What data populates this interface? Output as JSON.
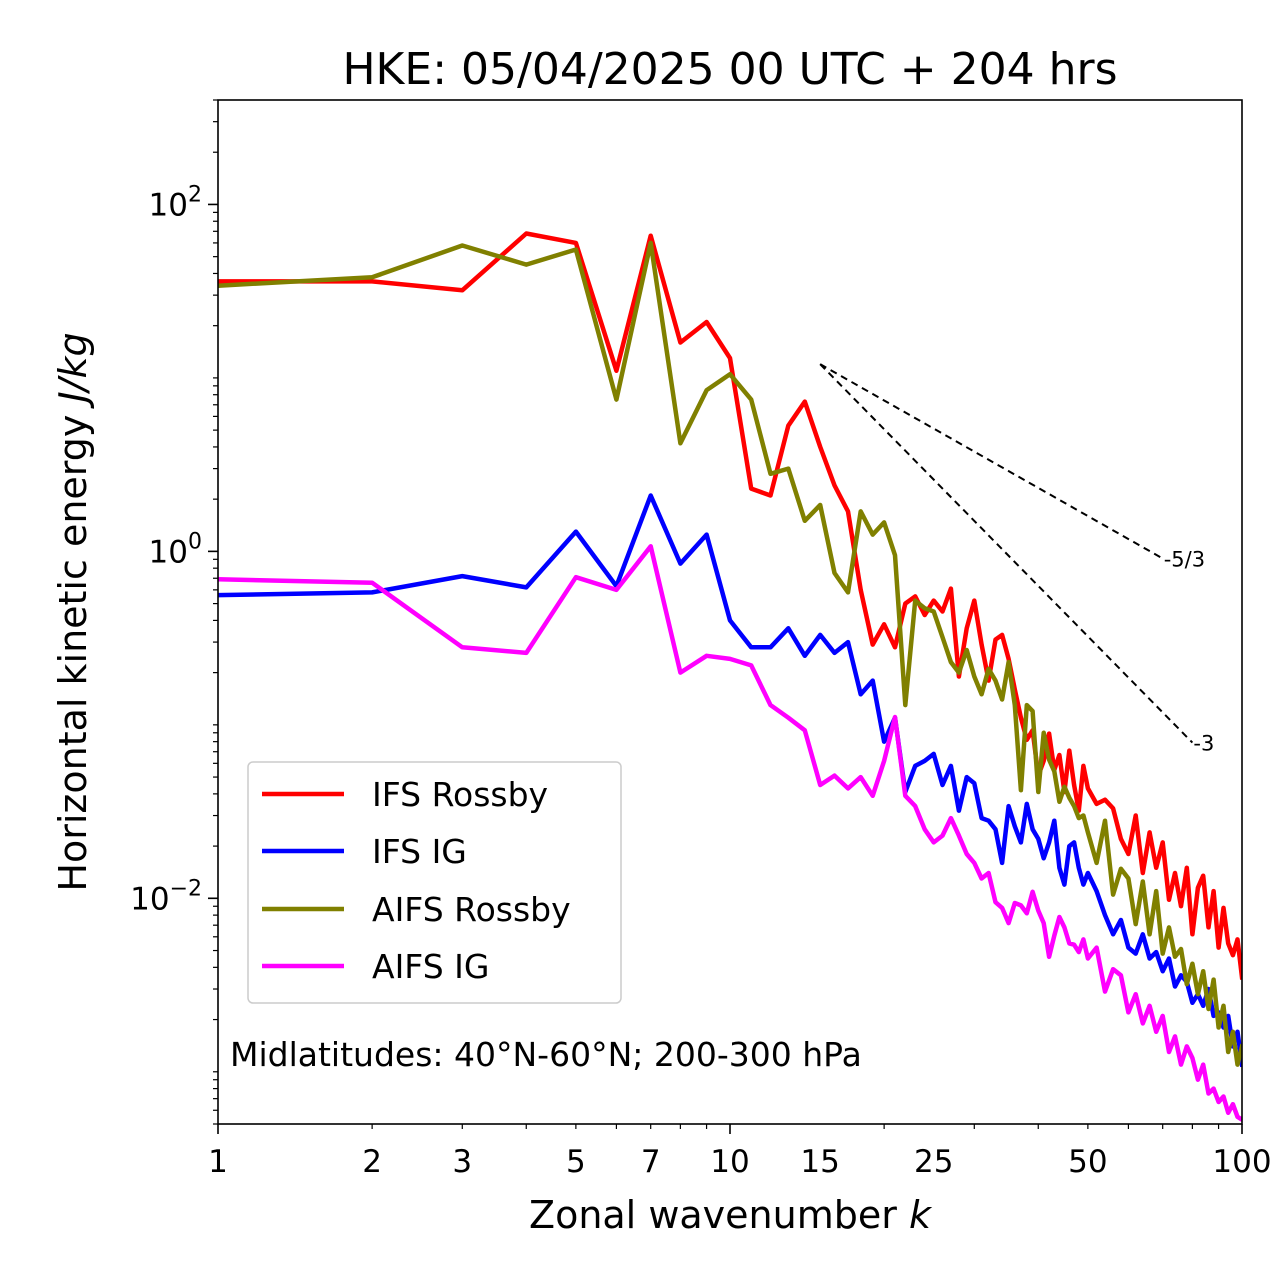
{
  "chart_data": {
    "type": "line",
    "title": "HKE: 05/04/2025 00 UTC + 204 hrs",
    "xlabel": "Zonal wavenumber",
    "xlabel_var": "k",
    "ylabel": "Horizontal kinetic energy",
    "ylabel_units": "J/kg",
    "xscale": "log",
    "yscale": "log",
    "xlim": [
      1,
      100
    ],
    "ylim": [
      0.0005,
      400
    ],
    "x_ticks": [
      1,
      2,
      3,
      5,
      7,
      10,
      15,
      25,
      50,
      100
    ],
    "x_tick_labels": [
      "1",
      "2",
      "3",
      "5",
      "7",
      "10",
      "15",
      "25",
      "50",
      "100"
    ],
    "y_ticks": [
      0.01,
      1,
      100
    ],
    "y_tick_labels": [
      {
        "base": "10",
        "exp": "−2"
      },
      {
        "base": "10",
        "exp": "0"
      },
      {
        "base": "10",
        "exp": "2"
      }
    ],
    "grid": false,
    "legend_position": "lower-left",
    "annotation": "Midlatitudes: 40°N-60°N; 200-300 hPa",
    "reference_lines": [
      {
        "label": "-5/3",
        "slope": -1.6667,
        "x": [
          15,
          70
        ],
        "y": [
          12.0,
          0.91
        ]
      },
      {
        "label": "-3",
        "slope": -3,
        "x": [
          15,
          80
        ],
        "y": [
          12.0,
          0.079
        ]
      }
    ],
    "series": [
      {
        "name": "IFS Rossby",
        "color": "#ff0000",
        "points": [
          [
            1,
            36
          ],
          [
            2,
            36
          ],
          [
            3,
            32
          ],
          [
            4,
            68
          ],
          [
            5,
            60
          ],
          [
            6,
            11
          ],
          [
            7,
            66
          ],
          [
            8,
            16
          ],
          [
            9,
            21
          ],
          [
            10,
            13
          ],
          [
            11,
            2.3
          ],
          [
            12,
            2.1
          ],
          [
            13,
            5.3
          ],
          [
            14,
            7.3
          ],
          [
            15,
            4.0
          ],
          [
            16,
            2.4
          ],
          [
            17,
            1.7
          ],
          [
            18,
            0.6
          ],
          [
            19,
            0.29
          ],
          [
            20,
            0.38
          ],
          [
            21,
            0.28
          ],
          [
            22,
            0.5
          ],
          [
            23,
            0.55
          ],
          [
            24,
            0.43
          ],
          [
            25,
            0.52
          ],
          [
            26,
            0.45
          ],
          [
            27,
            0.61
          ],
          [
            28,
            0.19
          ],
          [
            29,
            0.36
          ],
          [
            30,
            0.52
          ],
          [
            31,
            0.29
          ],
          [
            32,
            0.18
          ],
          [
            33,
            0.31
          ],
          [
            34,
            0.33
          ],
          [
            35,
            0.24
          ],
          [
            36,
            0.16
          ],
          [
            37,
            0.11
          ],
          [
            38,
            0.082
          ],
          [
            39,
            0.093
          ],
          [
            40,
            0.051
          ],
          [
            41,
            0.062
          ],
          [
            42,
            0.089
          ],
          [
            43,
            0.055
          ],
          [
            44,
            0.067
          ],
          [
            45,
            0.041
          ],
          [
            46,
            0.071
          ],
          [
            47,
            0.045
          ],
          [
            48,
            0.032
          ],
          [
            49,
            0.058
          ],
          [
            50,
            0.043
          ],
          [
            52,
            0.035
          ],
          [
            54,
            0.037
          ],
          [
            56,
            0.033
          ],
          [
            58,
            0.022
          ],
          [
            60,
            0.018
          ],
          [
            62,
            0.03
          ],
          [
            64,
            0.014
          ],
          [
            66,
            0.024
          ],
          [
            68,
            0.015
          ],
          [
            70,
            0.021
          ],
          [
            72,
            0.0098
          ],
          [
            74,
            0.014
          ],
          [
            76,
            0.009
          ],
          [
            78,
            0.015
          ],
          [
            80,
            0.0062
          ],
          [
            82,
            0.0115
          ],
          [
            84,
            0.0135
          ],
          [
            86,
            0.0068
          ],
          [
            88,
            0.011
          ],
          [
            90,
            0.0052
          ],
          [
            92,
            0.0088
          ],
          [
            94,
            0.0055
          ],
          [
            96,
            0.0047
          ],
          [
            98,
            0.0058
          ],
          [
            100,
            0.0035
          ]
        ]
      },
      {
        "name": "IFS IG",
        "color": "#0000ff",
        "points": [
          [
            1,
            0.56
          ],
          [
            2,
            0.58
          ],
          [
            3,
            0.72
          ],
          [
            4,
            0.62
          ],
          [
            5,
            1.3
          ],
          [
            6,
            0.63
          ],
          [
            7,
            2.1
          ],
          [
            8,
            0.85
          ],
          [
            9,
            1.25
          ],
          [
            10,
            0.4
          ],
          [
            11,
            0.28
          ],
          [
            12,
            0.28
          ],
          [
            13,
            0.36
          ],
          [
            14,
            0.25
          ],
          [
            15,
            0.33
          ],
          [
            16,
            0.26
          ],
          [
            17,
            0.3
          ],
          [
            18,
            0.15
          ],
          [
            19,
            0.18
          ],
          [
            20,
            0.08
          ],
          [
            21,
            0.11
          ],
          [
            22,
            0.041
          ],
          [
            23,
            0.058
          ],
          [
            24,
            0.062
          ],
          [
            25,
            0.068
          ],
          [
            26,
            0.045
          ],
          [
            27,
            0.058
          ],
          [
            28,
            0.032
          ],
          [
            29,
            0.05
          ],
          [
            30,
            0.046
          ],
          [
            31,
            0.029
          ],
          [
            32,
            0.028
          ],
          [
            33,
            0.025
          ],
          [
            34,
            0.016
          ],
          [
            35,
            0.034
          ],
          [
            36,
            0.026
          ],
          [
            37,
            0.021
          ],
          [
            38,
            0.035
          ],
          [
            39,
            0.025
          ],
          [
            40,
            0.022
          ],
          [
            41,
            0.017
          ],
          [
            42,
            0.021
          ],
          [
            43,
            0.028
          ],
          [
            44,
            0.015
          ],
          [
            45,
            0.012
          ],
          [
            46,
            0.02
          ],
          [
            47,
            0.021
          ],
          [
            48,
            0.015
          ],
          [
            49,
            0.012
          ],
          [
            50,
            0.014
          ],
          [
            52,
            0.011
          ],
          [
            54,
            0.008
          ],
          [
            56,
            0.0062
          ],
          [
            58,
            0.0075
          ],
          [
            60,
            0.0052
          ],
          [
            62,
            0.0048
          ],
          [
            64,
            0.0062
          ],
          [
            66,
            0.0045
          ],
          [
            68,
            0.0049
          ],
          [
            70,
            0.0038
          ],
          [
            72,
            0.0045
          ],
          [
            74,
            0.0031
          ],
          [
            76,
            0.0036
          ],
          [
            78,
            0.0033
          ],
          [
            80,
            0.0025
          ],
          [
            82,
            0.0028
          ],
          [
            84,
            0.0024
          ],
          [
            86,
            0.003
          ],
          [
            88,
            0.0021
          ],
          [
            90,
            0.0022
          ],
          [
            92,
            0.0018
          ],
          [
            94,
            0.0021
          ],
          [
            96,
            0.0014
          ],
          [
            98,
            0.0017
          ],
          [
            100,
            0.0011
          ]
        ]
      },
      {
        "name": "AIFS Rossby",
        "color": "#808000",
        "points": [
          [
            1,
            34
          ],
          [
            2,
            38
          ],
          [
            3,
            58
          ],
          [
            4,
            45
          ],
          [
            5,
            55
          ],
          [
            6,
            7.5
          ],
          [
            7,
            60
          ],
          [
            8,
            4.2
          ],
          [
            9,
            8.5
          ],
          [
            10,
            10.5
          ],
          [
            11,
            7.5
          ],
          [
            12,
            2.8
          ],
          [
            13,
            3.0
          ],
          [
            14,
            1.5
          ],
          [
            15,
            1.85
          ],
          [
            16,
            0.75
          ],
          [
            17,
            0.58
          ],
          [
            18,
            1.7
          ],
          [
            19,
            1.25
          ],
          [
            20,
            1.47
          ],
          [
            21,
            0.95
          ],
          [
            22,
            0.13
          ],
          [
            23,
            0.52
          ],
          [
            24,
            0.47
          ],
          [
            25,
            0.45
          ],
          [
            26,
            0.32
          ],
          [
            27,
            0.23
          ],
          [
            28,
            0.2
          ],
          [
            29,
            0.27
          ],
          [
            30,
            0.19
          ],
          [
            31,
            0.15
          ],
          [
            32,
            0.21
          ],
          [
            33,
            0.18
          ],
          [
            34,
            0.14
          ],
          [
            35,
            0.23
          ],
          [
            36,
            0.13
          ],
          [
            37,
            0.042
          ],
          [
            38,
            0.13
          ],
          [
            39,
            0.12
          ],
          [
            40,
            0.041
          ],
          [
            41,
            0.09
          ],
          [
            42,
            0.063
          ],
          [
            43,
            0.054
          ],
          [
            44,
            0.036
          ],
          [
            45,
            0.044
          ],
          [
            46,
            0.038
          ],
          [
            47,
            0.034
          ],
          [
            48,
            0.029
          ],
          [
            49,
            0.03
          ],
          [
            50,
            0.024
          ],
          [
            52,
            0.016
          ],
          [
            54,
            0.028
          ],
          [
            56,
            0.0105
          ],
          [
            58,
            0.0148
          ],
          [
            60,
            0.013
          ],
          [
            62,
            0.0071
          ],
          [
            64,
            0.0125
          ],
          [
            66,
            0.0062
          ],
          [
            68,
            0.011
          ],
          [
            70,
            0.0048
          ],
          [
            72,
            0.0068
          ],
          [
            74,
            0.0046
          ],
          [
            76,
            0.0051
          ],
          [
            78,
            0.0032
          ],
          [
            80,
            0.0042
          ],
          [
            82,
            0.0028
          ],
          [
            84,
            0.0038
          ],
          [
            86,
            0.0023
          ],
          [
            88,
            0.0034
          ],
          [
            90,
            0.0018
          ],
          [
            92,
            0.0024
          ],
          [
            94,
            0.0013
          ],
          [
            96,
            0.0017
          ],
          [
            98,
            0.0011
          ],
          [
            100,
            0.0014
          ]
        ]
      },
      {
        "name": "AIFS IG",
        "color": "#ff00ff",
        "points": [
          [
            1,
            0.69
          ],
          [
            2,
            0.66
          ],
          [
            3,
            0.28
          ],
          [
            4,
            0.26
          ],
          [
            5,
            0.71
          ],
          [
            6,
            0.6
          ],
          [
            7,
            1.07
          ],
          [
            8,
            0.2
          ],
          [
            9,
            0.25
          ],
          [
            10,
            0.24
          ],
          [
            11,
            0.22
          ],
          [
            12,
            0.13
          ],
          [
            13,
            0.11
          ],
          [
            14,
            0.093
          ],
          [
            15,
            0.045
          ],
          [
            16,
            0.051
          ],
          [
            17,
            0.043
          ],
          [
            18,
            0.05
          ],
          [
            19,
            0.039
          ],
          [
            20,
            0.062
          ],
          [
            21,
            0.111
          ],
          [
            22,
            0.039
          ],
          [
            23,
            0.034
          ],
          [
            24,
            0.025
          ],
          [
            25,
            0.021
          ],
          [
            26,
            0.023
          ],
          [
            27,
            0.029
          ],
          [
            28,
            0.023
          ],
          [
            29,
            0.018
          ],
          [
            30,
            0.016
          ],
          [
            31,
            0.013
          ],
          [
            32,
            0.014
          ],
          [
            33,
            0.0095
          ],
          [
            34,
            0.0088
          ],
          [
            35,
            0.0072
          ],
          [
            36,
            0.0094
          ],
          [
            37,
            0.0091
          ],
          [
            38,
            0.0082
          ],
          [
            39,
            0.0109
          ],
          [
            40,
            0.0085
          ],
          [
            41,
            0.0072
          ],
          [
            42,
            0.0046
          ],
          [
            43,
            0.0061
          ],
          [
            44,
            0.0078
          ],
          [
            45,
            0.0068
          ],
          [
            46,
            0.0055
          ],
          [
            47,
            0.0054
          ],
          [
            48,
            0.0049
          ],
          [
            49,
            0.0058
          ],
          [
            50,
            0.0045
          ],
          [
            52,
            0.0052
          ],
          [
            54,
            0.0029
          ],
          [
            56,
            0.0039
          ],
          [
            58,
            0.0036
          ],
          [
            60,
            0.0022
          ],
          [
            62,
            0.0028
          ],
          [
            64,
            0.0019
          ],
          [
            66,
            0.0024
          ],
          [
            68,
            0.0017
          ],
          [
            70,
            0.0021
          ],
          [
            72,
            0.0013
          ],
          [
            74,
            0.0016
          ],
          [
            76,
            0.0011
          ],
          [
            78,
            0.0014
          ],
          [
            80,
            0.0012
          ],
          [
            82,
            0.0009
          ],
          [
            84,
            0.0011
          ],
          [
            86,
            0.00075
          ],
          [
            88,
            0.0008
          ],
          [
            90,
            0.00067
          ],
          [
            92,
            0.00072
          ],
          [
            94,
            0.00058
          ],
          [
            96,
            0.00065
          ],
          [
            98,
            0.00055
          ],
          [
            100,
            0.00053
          ]
        ]
      }
    ]
  }
}
